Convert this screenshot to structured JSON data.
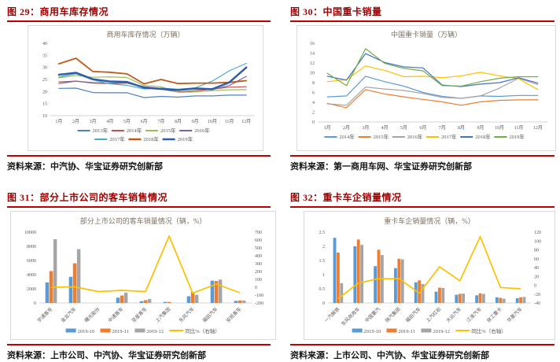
{
  "page": {
    "colors": {
      "caption_text": "#9e0000",
      "rule": "#c00000",
      "chart_title": "#7d7163",
      "axis_text": "#595959",
      "axis_line": "#c9c9c9"
    },
    "figures": [
      {
        "header": "图 29：商用车库存情况",
        "source": "资料来源：中汽协、华宝证券研究创新部"
      },
      {
        "header": "图 30：中国重卡销量",
        "source": "资料来源：第一商用车网、华宝证券研究创新部"
      },
      {
        "header": "图 31：部分上市公司的客车销售情况",
        "source": "资料来源：上市公司、中汽协、华宝证券研究创新部"
      },
      {
        "header": "图 32：重卡车企销量情况",
        "source": "资料来源：上市公司、中汽协、华宝证券研究创新部"
      }
    ]
  },
  "chart_data": [
    {
      "type": "line",
      "title": "商用车库存情况（万辆）",
      "x": [
        "1月",
        "2月",
        "3月",
        "4月",
        "5月",
        "6月",
        "7月",
        "8月",
        "9月",
        "10月",
        "11月",
        "12月"
      ],
      "ylim": [
        10,
        40
      ],
      "yticks": [
        10,
        15,
        20,
        25,
        30,
        35,
        40
      ],
      "grid": false,
      "legend_position": "bottom",
      "series": [
        {
          "name": "2013年",
          "color": "#4f81bd",
          "values": [
            21.3,
            21.4,
            19.6,
            19.5,
            19.5,
            17.5,
            18.0,
            17.7,
            18.2,
            18.2,
            18.5,
            18.5
          ]
        },
        {
          "name": "2014年",
          "color": "#c0504d",
          "values": [
            24.0,
            24.3,
            23.5,
            23.3,
            23.5,
            21.7,
            21.0,
            19.8,
            20.3,
            21.0,
            21.8,
            22.0
          ]
        },
        {
          "name": "2015年",
          "color": "#9bbb59",
          "values": [
            25.7,
            26.7,
            25.9,
            26.1,
            25.8,
            22.5,
            22.0,
            19.7,
            19.8,
            20.4,
            20.7,
            20.8
          ]
        },
        {
          "name": "2016年",
          "color": "#8064a2",
          "values": [
            23.3,
            24.3,
            23.7,
            23.4,
            23.8,
            22.0,
            21.3,
            20.7,
            21.0,
            20.8,
            22.5,
            26.3
          ]
        },
        {
          "name": "2017年",
          "color": "#4bacc6",
          "values": [
            26.0,
            27.4,
            24.8,
            23.2,
            22.6,
            21.1,
            21.4,
            21.0,
            21.5,
            24.3,
            28.6,
            31.7
          ]
        },
        {
          "name": "2018年",
          "color": "#be5b17",
          "values": [
            31.5,
            33.8,
            28.3,
            28.0,
            27.3,
            23.2,
            25.0,
            23.3,
            23.5,
            23.5,
            23.8,
            24.5
          ],
          "width": 1.8
        },
        {
          "name": "2019年",
          "color": "#2f5ca8",
          "values": [
            27.0,
            27.8,
            25.1,
            24.2,
            24.0,
            21.6,
            21.1,
            20.6,
            21.3,
            21.0,
            23.8,
            30.0
          ],
          "width": 2.4
        }
      ]
    },
    {
      "type": "line",
      "title": "中国重卡销量（万辆）",
      "x": [
        "1月",
        "2月",
        "3月",
        "4月",
        "5月",
        "6月",
        "7月",
        "8月",
        "9月",
        "10月",
        "11月",
        "12月"
      ],
      "ylim": [
        0,
        16
      ],
      "yticks": [
        0,
        2,
        4,
        6,
        8,
        10,
        12,
        14,
        16
      ],
      "grid": false,
      "legend_position": "bottom",
      "series": [
        {
          "name": "2014年",
          "color": "#5b9bd5",
          "values": [
            5.1,
            5.3,
            9.3,
            8.2,
            7.3,
            6.0,
            5.2,
            4.8,
            5.3,
            5.2,
            5.4,
            5.4
          ]
        },
        {
          "name": "2015年",
          "color": "#ed7d31",
          "values": [
            3.8,
            2.9,
            6.6,
            5.7,
            5.1,
            4.6,
            4.1,
            3.4,
            4.1,
            4.4,
            4.5,
            4.5
          ]
        },
        {
          "name": "2016年",
          "color": "#a5a5a5",
          "values": [
            3.7,
            3.4,
            7.1,
            6.7,
            6.4,
            5.8,
            5.0,
            4.8,
            5.3,
            6.9,
            8.9,
            7.6
          ]
        },
        {
          "name": "2017年",
          "color": "#ffc000",
          "values": [
            8.2,
            8.6,
            11.4,
            10.5,
            9.2,
            9.3,
            9.0,
            9.4,
            10.1,
            9.4,
            8.8,
            6.6
          ]
        },
        {
          "name": "2018年",
          "color": "#4472c4",
          "values": [
            9.3,
            8.5,
            13.9,
            12.1,
            11.2,
            11.0,
            7.5,
            7.2,
            7.7,
            8.0,
            9.0,
            7.9
          ]
        },
        {
          "name": "2019年",
          "color": "#70ad47",
          "values": [
            9.9,
            7.4,
            14.9,
            11.9,
            10.9,
            10.4,
            7.4,
            7.3,
            8.2,
            8.9,
            9.2,
            9.2
          ]
        }
      ]
    },
    {
      "type": "bar",
      "title": "部分上市公司的客车销量情况（辆，%）",
      "categories": [
        "宇通客车",
        "金龙汽车",
        "曙光股份",
        "中通客车",
        "亚星客车",
        "上汽集团",
        "东风汽车",
        "福田汽车",
        "安凯客车"
      ],
      "left_ylim": [
        0,
        10000
      ],
      "left_yticks": [
        0,
        2000,
        4000,
        6000,
        8000,
        10000
      ],
      "right_ylim": [
        -200,
        700
      ],
      "right_yticks": [
        -200,
        -100,
        0,
        100,
        200,
        300,
        400,
        500,
        600,
        700
      ],
      "legend_position": "bottom",
      "bar_series": [
        {
          "name": "2019-10",
          "color": "#5b9bd5",
          "values": [
            2900,
            3700,
            0,
            750,
            250,
            150,
            950,
            3150,
            300
          ]
        },
        {
          "name": "2019-11",
          "color": "#ed7d31",
          "values": [
            4500,
            5600,
            0,
            1050,
            400,
            150,
            1550,
            3100,
            350
          ]
        },
        {
          "name": "2019-12",
          "color": "#a5a5a5",
          "values": [
            9000,
            7600,
            0,
            1450,
            550,
            0,
            1150,
            3300,
            350
          ]
        }
      ],
      "line_series": {
        "name": "同比%（右轴）",
        "color": "#ffc000",
        "values": [
          0,
          5,
          -55,
          -40,
          -55,
          650,
          -75,
          40,
          -70
        ]
      }
    },
    {
      "type": "bar",
      "title": "重卡车企销量情况（辆，%）",
      "categories": [
        "一汽解放",
        "东风商用车",
        "中国重汽",
        "陕汽集团",
        "福田汽车",
        "上汽红岩",
        "大运汽车",
        "江淮汽车",
        "徐工重卡",
        "华菱汽车"
      ],
      "left_ylim": [
        0,
        2.5
      ],
      "left_yticks": [
        0,
        0.5,
        1,
        1.5,
        2,
        2.5
      ],
      "right_ylim": [
        -40,
        120
      ],
      "right_yticks": [
        -40,
        -20,
        0,
        20,
        40,
        60,
        80,
        100,
        120
      ],
      "legend_position": "bottom",
      "bar_series": [
        {
          "name": "2019-10",
          "color": "#5b9bd5",
          "values": [
            2.3,
            2.0,
            1.3,
            1.23,
            0.73,
            0.4,
            0.29,
            0.27,
            0.2,
            0.17
          ]
        },
        {
          "name": "2019-11",
          "color": "#ed7d31",
          "values": [
            1.78,
            2.24,
            1.88,
            1.56,
            0.8,
            0.54,
            0.32,
            0.34,
            0.18,
            0.2
          ]
        },
        {
          "name": "2019-12",
          "color": "#a5a5a5",
          "values": [
            0.7,
            2.05,
            1.69,
            1.54,
            0.67,
            0.53,
            0.33,
            0.32,
            0.15,
            0.21
          ]
        }
      ],
      "line_series": {
        "name": "同比%（右轴）",
        "color": "#ffc000",
        "values": [
          -30,
          5,
          15,
          15,
          -18,
          42,
          10,
          110,
          -5,
          -8
        ]
      }
    }
  ]
}
